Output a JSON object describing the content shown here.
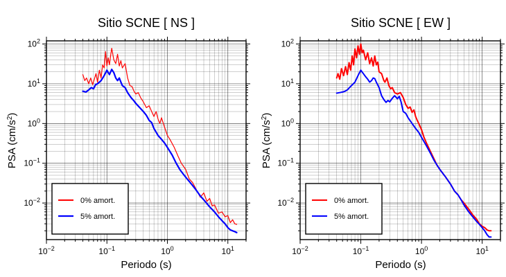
{
  "chart_data": [
    {
      "type": "line",
      "title": "Sitio SCNE [ NS ]",
      "xlabel": "Periodo (s)",
      "ylabel_main": "PSA (cm/s",
      "ylabel_sup": "2",
      "ylabel_end": ")",
      "xscale": "log",
      "yscale": "log",
      "xlim": [
        0.01,
        20
      ],
      "ylim": [
        0.0012,
        120
      ],
      "grid": true,
      "x_ticks": [
        {
          "value": 0.01,
          "base": "10",
          "exp": "−2"
        },
        {
          "value": 0.1,
          "base": "10",
          "exp": "−1"
        },
        {
          "value": 1,
          "base": "10",
          "exp": "0"
        },
        {
          "value": 10,
          "base": "10",
          "exp": "1"
        }
      ],
      "y_ticks": [
        {
          "value": 0.01,
          "base": "10",
          "exp": "−2"
        },
        {
          "value": 0.1,
          "base": "10",
          "exp": "−1"
        },
        {
          "value": 1,
          "base": "10",
          "exp": "0"
        },
        {
          "value": 10,
          "base": "10",
          "exp": "1"
        },
        {
          "value": 100,
          "base": "10",
          "exp": "2"
        }
      ],
      "legend_position": "bottom-left",
      "series": [
        {
          "name": "0% amort.",
          "color": "#ff0000",
          "width": 1.2,
          "points": [
            [
              0.04,
              17
            ],
            [
              0.043,
              12
            ],
            [
              0.046,
              14
            ],
            [
              0.05,
              10
            ],
            [
              0.054,
              14
            ],
            [
              0.058,
              9.5
            ],
            [
              0.062,
              13
            ],
            [
              0.066,
              18
            ],
            [
              0.07,
              11
            ],
            [
              0.075,
              22
            ],
            [
              0.08,
              14
            ],
            [
              0.085,
              30
            ],
            [
              0.09,
              25
            ],
            [
              0.095,
              65
            ],
            [
              0.1,
              28
            ],
            [
              0.105,
              45
            ],
            [
              0.11,
              30
            ],
            [
              0.115,
              50
            ],
            [
              0.12,
              78
            ],
            [
              0.13,
              40
            ],
            [
              0.14,
              32
            ],
            [
              0.15,
              55
            ],
            [
              0.16,
              28
            ],
            [
              0.17,
              38
            ],
            [
              0.18,
              25
            ],
            [
              0.2,
              32
            ],
            [
              0.22,
              14
            ],
            [
              0.24,
              9
            ],
            [
              0.26,
              8.5
            ],
            [
              0.28,
              6.5
            ],
            [
              0.3,
              5.5
            ],
            [
              0.33,
              6
            ],
            [
              0.36,
              4.5
            ],
            [
              0.4,
              3.5
            ],
            [
              0.45,
              2.5
            ],
            [
              0.5,
              2.8
            ],
            [
              0.55,
              2
            ],
            [
              0.6,
              1.5
            ],
            [
              0.65,
              2
            ],
            [
              0.7,
              1.3
            ],
            [
              0.75,
              1
            ],
            [
              0.8,
              1.4
            ],
            [
              0.9,
              0.8
            ],
            [
              1,
              0.5
            ],
            [
              1.1,
              0.4
            ],
            [
              1.3,
              0.25
            ],
            [
              1.5,
              0.15
            ],
            [
              1.7,
              0.1
            ],
            [
              2,
              0.07
            ],
            [
              2.3,
              0.04
            ],
            [
              2.6,
              0.033
            ],
            [
              3,
              0.022
            ],
            [
              3.5,
              0.014
            ],
            [
              4,
              0.018
            ],
            [
              4.5,
              0.011
            ],
            [
              5,
              0.013
            ],
            [
              5.5,
              0.0085
            ],
            [
              6,
              0.009
            ],
            [
              7,
              0.0055
            ],
            [
              8,
              0.006
            ],
            [
              9,
              0.0045
            ],
            [
              10,
              0.0048
            ],
            [
              11,
              0.0032
            ],
            [
              12,
              0.0038
            ],
            [
              13,
              0.003
            ],
            [
              14,
              0.0029
            ]
          ]
        },
        {
          "name": "5% amort.",
          "color": "#0000ff",
          "width": 2.2,
          "points": [
            [
              0.04,
              6.5
            ],
            [
              0.045,
              6.2
            ],
            [
              0.05,
              7
            ],
            [
              0.055,
              8
            ],
            [
              0.06,
              7.5
            ],
            [
              0.065,
              9.5
            ],
            [
              0.07,
              10
            ],
            [
              0.08,
              12
            ],
            [
              0.09,
              16
            ],
            [
              0.1,
              22
            ],
            [
              0.11,
              17
            ],
            [
              0.12,
              23
            ],
            [
              0.13,
              19
            ],
            [
              0.14,
              14
            ],
            [
              0.15,
              12
            ],
            [
              0.16,
              14
            ],
            [
              0.17,
              11
            ],
            [
              0.18,
              9
            ],
            [
              0.2,
              8
            ],
            [
              0.22,
              6
            ],
            [
              0.25,
              4.5
            ],
            [
              0.28,
              3.7
            ],
            [
              0.3,
              3.2
            ],
            [
              0.35,
              2.5
            ],
            [
              0.4,
              2
            ],
            [
              0.45,
              1.6
            ],
            [
              0.5,
              1.2
            ],
            [
              0.55,
              1.05
            ],
            [
              0.6,
              0.75
            ],
            [
              0.7,
              0.5
            ],
            [
              0.8,
              0.4
            ],
            [
              0.9,
              0.32
            ],
            [
              1,
              0.25
            ],
            [
              1.2,
              0.16
            ],
            [
              1.4,
              0.1
            ],
            [
              1.6,
              0.07
            ],
            [
              1.8,
              0.055
            ],
            [
              2,
              0.045
            ],
            [
              2.5,
              0.03
            ],
            [
              3,
              0.021
            ],
            [
              3.5,
              0.015
            ],
            [
              4,
              0.012
            ],
            [
              5,
              0.008
            ],
            [
              6,
              0.006
            ],
            [
              7,
              0.0045
            ],
            [
              8,
              0.0036
            ],
            [
              9,
              0.003
            ],
            [
              10,
              0.0024
            ],
            [
              11,
              0.0021
            ],
            [
              12,
              0.002
            ],
            [
              13,
              0.0019
            ],
            [
              14,
              0.0018
            ]
          ]
        }
      ]
    },
    {
      "type": "line",
      "title": "Sitio SCNE [ EW ]",
      "xlabel": "Periodo (s)",
      "ylabel_main": "PSA (cm/s",
      "ylabel_sup": "2",
      "ylabel_end": ")",
      "xscale": "log",
      "yscale": "log",
      "xlim": [
        0.01,
        20
      ],
      "ylim": [
        0.0012,
        120
      ],
      "grid": true,
      "x_ticks": [
        {
          "value": 0.01,
          "base": "10",
          "exp": "−2"
        },
        {
          "value": 0.1,
          "base": "10",
          "exp": "−1"
        },
        {
          "value": 1,
          "base": "10",
          "exp": "0"
        },
        {
          "value": 10,
          "base": "10",
          "exp": "1"
        }
      ],
      "y_ticks": [
        {
          "value": 0.01,
          "base": "10",
          "exp": "−2"
        },
        {
          "value": 0.1,
          "base": "10",
          "exp": "−1"
        },
        {
          "value": 1,
          "base": "10",
          "exp": "0"
        },
        {
          "value": 10,
          "base": "10",
          "exp": "1"
        },
        {
          "value": 100,
          "base": "10",
          "exp": "2"
        }
      ],
      "legend_position": "bottom-left",
      "series": [
        {
          "name": "0% amort.",
          "color": "#ff0000",
          "width": 2,
          "points": [
            [
              0.04,
              14
            ],
            [
              0.042,
              18
            ],
            [
              0.045,
              13
            ],
            [
              0.048,
              24
            ],
            [
              0.052,
              16
            ],
            [
              0.056,
              27
            ],
            [
              0.06,
              17
            ],
            [
              0.064,
              34
            ],
            [
              0.068,
              22
            ],
            [
              0.072,
              50
            ],
            [
              0.076,
              30
            ],
            [
              0.08,
              75
            ],
            [
              0.085,
              45
            ],
            [
              0.09,
              90
            ],
            [
              0.095,
              55
            ],
            [
              0.1,
              100
            ],
            [
              0.105,
              60
            ],
            [
              0.11,
              70
            ],
            [
              0.12,
              40
            ],
            [
              0.13,
              60
            ],
            [
              0.14,
              32
            ],
            [
              0.15,
              45
            ],
            [
              0.16,
              28
            ],
            [
              0.17,
              50
            ],
            [
              0.18,
              30
            ],
            [
              0.19,
              35
            ],
            [
              0.2,
              20
            ],
            [
              0.22,
              18
            ],
            [
              0.24,
              12
            ],
            [
              0.25,
              11
            ],
            [
              0.27,
              14
            ],
            [
              0.29,
              9
            ],
            [
              0.31,
              7.5
            ],
            [
              0.33,
              8
            ],
            [
              0.36,
              6
            ],
            [
              0.4,
              5.5
            ],
            [
              0.45,
              6
            ],
            [
              0.5,
              4.5
            ],
            [
              0.55,
              3
            ],
            [
              0.6,
              2.4
            ],
            [
              0.65,
              2.6
            ],
            [
              0.7,
              1.9
            ],
            [
              0.75,
              2.2
            ],
            [
              0.8,
              1.5
            ],
            [
              0.85,
              1.2
            ],
            [
              0.9,
              1
            ],
            [
              1,
              0.7
            ],
            [
              1.1,
              0.45
            ],
            [
              1.2,
              0.33
            ],
            [
              1.4,
              0.2
            ],
            [
              1.6,
              0.13
            ],
            [
              1.8,
              0.09
            ],
            [
              2,
              0.07
            ],
            [
              2.5,
              0.045
            ],
            [
              3,
              0.03
            ],
            [
              3.5,
              0.02
            ],
            [
              4,
              0.016
            ],
            [
              4.5,
              0.012
            ],
            [
              5,
              0.01
            ],
            [
              6,
              0.007
            ],
            [
              7,
              0.005
            ],
            [
              8,
              0.004
            ],
            [
              9,
              0.003
            ],
            [
              10,
              0.0026
            ],
            [
              11,
              0.0024
            ],
            [
              12,
              0.0021
            ],
            [
              13,
              0.002
            ],
            [
              14,
              0.002
            ]
          ]
        },
        {
          "name": "5% amort.",
          "color": "#0000ff",
          "width": 2,
          "points": [
            [
              0.04,
              5.8
            ],
            [
              0.045,
              6
            ],
            [
              0.05,
              6.2
            ],
            [
              0.055,
              6.5
            ],
            [
              0.06,
              7
            ],
            [
              0.065,
              8
            ],
            [
              0.07,
              9
            ],
            [
              0.08,
              11
            ],
            [
              0.09,
              16
            ],
            [
              0.1,
              22
            ],
            [
              0.11,
              18
            ],
            [
              0.12,
              15
            ],
            [
              0.13,
              13
            ],
            [
              0.14,
              11
            ],
            [
              0.15,
              12
            ],
            [
              0.16,
              14
            ],
            [
              0.17,
              13.5
            ],
            [
              0.18,
              11
            ],
            [
              0.2,
              8
            ],
            [
              0.22,
              5
            ],
            [
              0.24,
              4
            ],
            [
              0.26,
              3.4
            ],
            [
              0.28,
              3.8
            ],
            [
              0.3,
              3.5
            ],
            [
              0.33,
              4.3
            ],
            [
              0.36,
              5
            ],
            [
              0.4,
              4.2
            ],
            [
              0.43,
              4.8
            ],
            [
              0.46,
              3.5
            ],
            [
              0.5,
              2
            ],
            [
              0.55,
              1.8
            ],
            [
              0.6,
              1.4
            ],
            [
              0.7,
              1
            ],
            [
              0.8,
              0.75
            ],
            [
              0.9,
              0.6
            ],
            [
              1,
              0.45
            ],
            [
              1.2,
              0.28
            ],
            [
              1.4,
              0.18
            ],
            [
              1.6,
              0.12
            ],
            [
              1.8,
              0.09
            ],
            [
              2,
              0.07
            ],
            [
              2.5,
              0.045
            ],
            [
              3,
              0.03
            ],
            [
              3.5,
              0.02
            ],
            [
              4,
              0.016
            ],
            [
              4.5,
              0.012
            ],
            [
              5,
              0.009
            ],
            [
              6,
              0.006
            ],
            [
              7,
              0.0045
            ],
            [
              8,
              0.0035
            ],
            [
              9,
              0.0029
            ],
            [
              10,
              0.0024
            ],
            [
              11,
              0.002
            ],
            [
              12,
              0.0016
            ],
            [
              13,
              0.0014
            ],
            [
              14,
              0.0014
            ]
          ]
        }
      ]
    }
  ]
}
